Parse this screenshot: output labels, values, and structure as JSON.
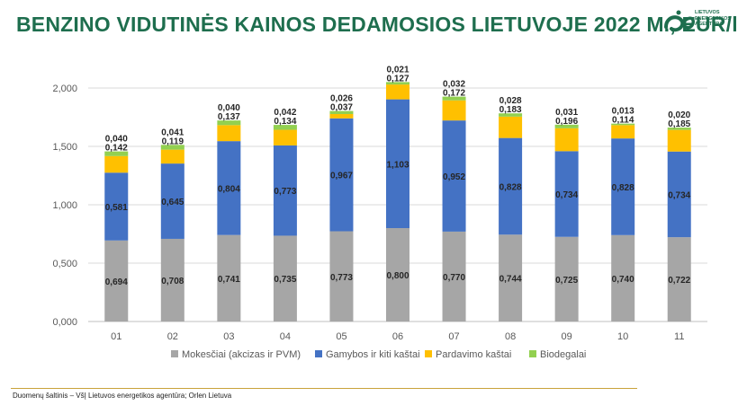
{
  "title": "BENZINO VIDUTINĖS KAINOS DEDAMOSIOS LIETUVOJE 2022 M., EUR/l",
  "logo": {
    "lines": [
      "LIETUVOS",
      "ENERGETIKOS",
      "AGENTŪRA"
    ]
  },
  "source": "Duomenų šaltinis – VšĮ Lietuvos energetikos agentūra; Orlen Lietuva",
  "colors": {
    "title": "#1e6e4e",
    "mokesciai": "#a6a6a6",
    "gamybos": "#4472c4",
    "pardavimo": "#ffc000",
    "biodegalai": "#92d050"
  },
  "chart_data": {
    "type": "bar",
    "stacked": true,
    "categories": [
      "01",
      "02",
      "03",
      "04",
      "05",
      "06",
      "07",
      "08",
      "09",
      "10",
      "11"
    ],
    "series": [
      {
        "name": "Mokesčiai (akcizas ir PVM)",
        "values": [
          0.694,
          0.708,
          0.741,
          0.735,
          0.773,
          0.8,
          0.77,
          0.744,
          0.725,
          0.74,
          0.722
        ],
        "labels": [
          "0,694",
          "0,708",
          "0,741",
          "0,735",
          "0,773",
          "0,800",
          "0,770",
          "0,744",
          "0,725",
          "0,740",
          "0,722"
        ]
      },
      {
        "name": "Gamybos ir kiti kaštai",
        "values": [
          0.581,
          0.645,
          0.804,
          0.773,
          0.967,
          1.103,
          0.952,
          0.828,
          0.734,
          0.828,
          0.734
        ],
        "labels": [
          "0,581",
          "0,645",
          "0,804",
          "0,773",
          "0,967",
          "1,103",
          "0,952",
          "0,828",
          "0,734",
          "0,828",
          "0,734"
        ]
      },
      {
        "name": "Pardavimo kaštai",
        "values": [
          0.142,
          0.119,
          0.137,
          0.134,
          0.037,
          0.127,
          0.172,
          0.183,
          0.196,
          0.114,
          0.185
        ],
        "labels": [
          "0,142",
          "0,119",
          "0,137",
          "0,134",
          "0,037",
          "0,127",
          "0,172",
          "0,183",
          "0,196",
          "0,114",
          "0,185"
        ]
      },
      {
        "name": "Biodegalai",
        "values": [
          0.04,
          0.041,
          0.04,
          0.042,
          0.026,
          0.021,
          0.032,
          0.028,
          0.031,
          0.013,
          0.02
        ],
        "labels": [
          "0,040",
          "0,041",
          "0,040",
          "0,042",
          "0,026",
          "0,021",
          "0,032",
          "0,028",
          "0,031",
          "0,013",
          "0,020"
        ]
      }
    ],
    "ylim": [
      0,
      2.0
    ],
    "yticks": [
      0,
      0.5,
      1.0,
      1.5,
      2.0
    ],
    "ytick_labels": [
      "0,000",
      "0,500",
      "1,000",
      "1,500",
      "2,000"
    ],
    "grid": true,
    "legend": "bottom"
  }
}
